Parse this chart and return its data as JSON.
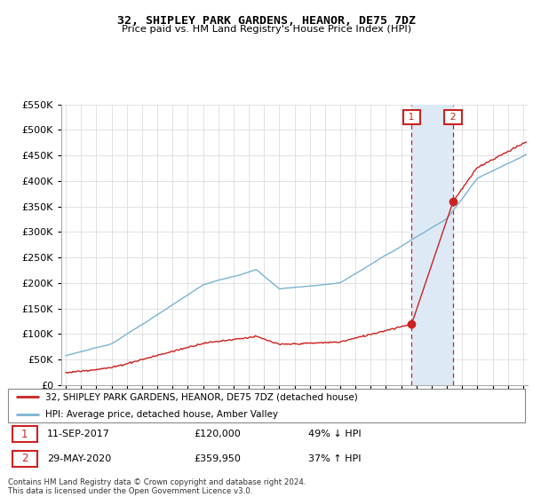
{
  "title": "32, SHIPLEY PARK GARDENS, HEANOR, DE75 7DZ",
  "subtitle": "Price paid vs. HM Land Registry's House Price Index (HPI)",
  "legend_line1": "32, SHIPLEY PARK GARDENS, HEANOR, DE75 7DZ (detached house)",
  "legend_line2": "HPI: Average price, detached house, Amber Valley",
  "footnote1": "Contains HM Land Registry data © Crown copyright and database right 2024.",
  "footnote2": "This data is licensed under the Open Government Licence v3.0.",
  "sale1_label": "1",
  "sale2_label": "2",
  "sale1_date": "11-SEP-2017",
  "sale1_price": "£120,000",
  "sale1_hpi": "49% ↓ HPI",
  "sale2_date": "29-MAY-2020",
  "sale2_price": "£359,950",
  "sale2_hpi": "37% ↑ HPI",
  "sale1_year": 2017.69,
  "sale1_value": 120000,
  "sale2_year": 2020.41,
  "sale2_value": 359950,
  "hpi_color": "#7ab3d4",
  "price_color": "#cc2222",
  "highlight_color": "#ddeaf5",
  "ylim": [
    0,
    550000
  ],
  "xlim_min": 1994.7,
  "xlim_max": 2025.3
}
